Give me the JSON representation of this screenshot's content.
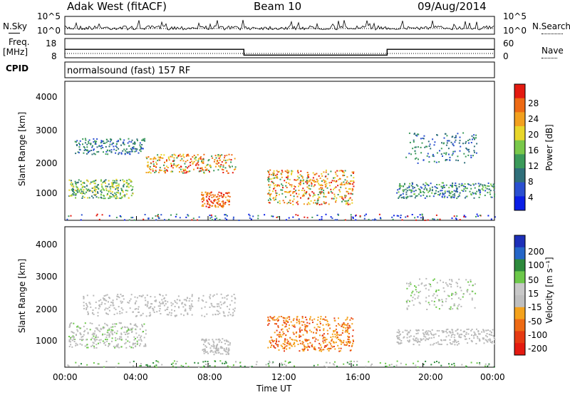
{
  "header": {
    "site": "Adak West (fitACF)",
    "beam": "Beam 10",
    "date": "09/Aug/2014"
  },
  "panel_labels": {
    "nsky": "N.Sky",
    "nsearch": "N.Search",
    "freq": "Freq.",
    "freq_unit": "[MHz]",
    "nave": "Nave",
    "cpid": "CPID",
    "mode": "normalsound (fast) 157 RF"
  },
  "colors": {
    "power": [
      "#0a1ee6",
      "#2a4fd0",
      "#2f6f7a",
      "#3b9a5a",
      "#79c84a",
      "#e8d62a",
      "#f2a01e",
      "#ee6a14",
      "#e41a10"
    ],
    "velocity": [
      "#1d2fb8",
      "#2566c8",
      "#2d8a3c",
      "#6cc84a",
      "#c8c8c8",
      "#bfbfbf",
      "#f4a21c",
      "#ee6a14",
      "#e63a12",
      "#e41a10"
    ],
    "ground": "#b9b9b9"
  },
  "chart_data": [
    {
      "type": "line",
      "title": "N.Sky / N.Search",
      "ylabels_left": [
        "10^5",
        "10^0"
      ],
      "ylabels_right": [
        "10^5",
        "10^0"
      ],
      "description": "Noise levels vs time"
    },
    {
      "type": "line",
      "title": "Freq. / Nave",
      "yticks_left": [
        18,
        8
      ],
      "yticks_right": [
        60,
        0
      ],
      "x": [
        "00:00",
        "10:00",
        "10:00",
        "18:00",
        "18:00",
        "24:00"
      ],
      "freq_mhz": [
        13.5,
        13.5,
        10.5,
        10.5,
        13.5,
        13.5
      ],
      "nave": [
        22,
        22,
        22,
        22,
        22,
        22
      ]
    },
    {
      "type": "heatmap",
      "ylabel": "Slant Range [km]",
      "yticks": [
        1000,
        2000,
        3000,
        4000
      ],
      "ylim": [
        180,
        4600
      ],
      "colorbar_label": "Power [dB]",
      "colorbar_ticks": [
        4,
        8,
        12,
        16,
        20,
        24,
        28
      ]
    },
    {
      "type": "heatmap",
      "ylabel": "Slant Range [km]",
      "yticks": [
        1000,
        2000,
        3000,
        4000
      ],
      "ylim": [
        180,
        4600
      ],
      "colorbar_label": "Velocity [m s⁻¹]",
      "colorbar_ticks": [
        200,
        100,
        50,
        15,
        -15,
        -50,
        -100,
        -200
      ]
    }
  ],
  "xaxis": {
    "ticks": [
      "00:00",
      "04:00",
      "08:00",
      "12:00",
      "16:00",
      "20:00",
      "00:00"
    ],
    "label": "Time UT"
  }
}
